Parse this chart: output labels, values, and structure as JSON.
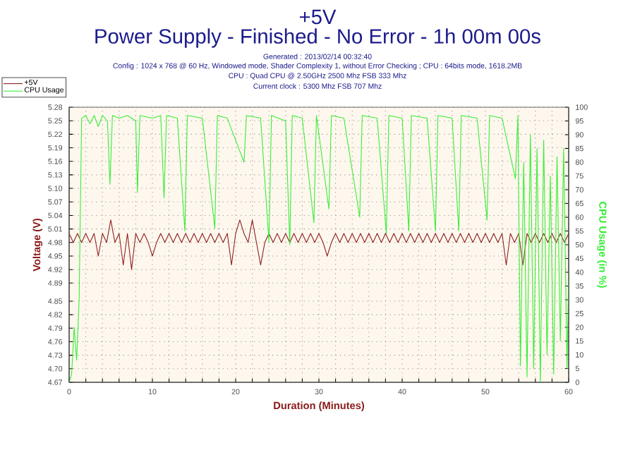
{
  "chart_data": {
    "type": "line",
    "title": "+5V",
    "subtitle": "Power Supply - Finished - No Error - 1h 00m 00s",
    "annotations": [
      "Generated : 2013/02/14 00:32:40",
      "Config : 1024 x 768 @ 60 Hz, Windowed mode, Shader Complexity 1, without Error Checking ; CPU : 64bits mode, 1618.2MB",
      "CPU : Quad CPU @ 2.50GHz 2500 Mhz FSB 333 Mhz",
      "Current clock : 5300 Mhz FSB 707 Mhz"
    ],
    "xlabel": "Duration (Minutes)",
    "ylabel": "Voltage (V)",
    "y2label": "CPU Usage (in %)",
    "xlim": [
      0,
      60
    ],
    "xticks": [
      0,
      {
        "value": 2,
        "label": null
      },
      {
        "value": 4,
        "label": null
      },
      {
        "value": 6,
        "label": null
      },
      {
        "value": 8,
        "label": null
      },
      10,
      {
        "value": 12,
        "label": null
      },
      {
        "value": 14,
        "label": null
      },
      {
        "value": 16,
        "label": null
      },
      {
        "value": 18,
        "label": null
      },
      20,
      {
        "value": 22,
        "label": null
      },
      {
        "value": 24,
        "label": null
      },
      {
        "value": 26,
        "label": null
      },
      {
        "value": 28,
        "label": null
      },
      30,
      {
        "value": 32,
        "label": null
      },
      {
        "value": 34,
        "label": null
      },
      {
        "value": 36,
        "label": null
      },
      {
        "value": 38,
        "label": null
      },
      40,
      {
        "value": 42,
        "label": null
      },
      {
        "value": 44,
        "label": null
      },
      {
        "value": 46,
        "label": null
      },
      {
        "value": 48,
        "label": null
      },
      50,
      {
        "value": 52,
        "label": null
      },
      {
        "value": 54,
        "label": null
      },
      {
        "value": 56,
        "label": null
      },
      {
        "value": 58,
        "label": null
      },
      60
    ],
    "ylim": [
      4.67,
      5.28
    ],
    "yticks": [
      4.67,
      {
        "value": 4.7,
        "label": "4.70"
      },
      4.73,
      4.76,
      4.79,
      4.82,
      4.85,
      4.89,
      4.92,
      4.95,
      4.98,
      5.01,
      5.04,
      5.07,
      {
        "value": 5.1,
        "label": "5.10"
      },
      5.13,
      5.16,
      5.19,
      5.22,
      5.25,
      5.28
    ],
    "y2lim": [
      0,
      100
    ],
    "y2ticks": [
      0,
      5,
      10,
      15,
      20,
      25,
      30,
      35,
      40,
      45,
      50,
      55,
      60,
      65,
      70,
      75,
      80,
      85,
      90,
      95,
      100
    ],
    "grid": true,
    "legend": "top left",
    "marker": "none",
    "line_style": "solid",
    "series": [
      {
        "name": "+5V",
        "color": "#8b1a1a",
        "x": [
          0,
          0.5,
          1,
          1.5,
          2,
          2.5,
          3,
          3.5,
          4,
          4.5,
          5,
          5.5,
          6,
          6.5,
          7,
          7.5,
          8,
          8.5,
          9,
          9.5,
          10,
          10.5,
          11,
          11.5,
          12,
          12.5,
          13,
          13.5,
          14,
          14.5,
          15,
          15.5,
          16,
          16.5,
          17,
          17.5,
          18,
          18.5,
          19,
          19.5,
          20,
          20.5,
          21,
          21.5,
          22,
          22.5,
          23,
          23.5,
          24,
          24.5,
          25,
          25.5,
          26,
          26.5,
          27,
          27.5,
          28,
          28.5,
          29,
          29.5,
          30,
          30.5,
          31,
          31.5,
          32,
          32.5,
          33,
          33.5,
          34,
          34.5,
          35,
          35.5,
          36,
          36.5,
          37,
          37.5,
          38,
          38.5,
          39,
          39.5,
          40,
          40.5,
          41,
          41.5,
          42,
          42.5,
          43,
          43.5,
          44,
          44.5,
          45,
          45.5,
          46,
          46.5,
          47,
          47.5,
          48,
          48.5,
          49,
          49.5,
          50,
          50.5,
          51,
          51.5,
          52,
          52.5,
          53,
          53.5,
          54,
          54.5,
          55,
          55.5,
          56,
          56.5,
          57,
          57.5,
          58,
          58.5,
          59,
          59.5,
          60
        ],
        "values": [
          5.0,
          4.98,
          5.0,
          4.98,
          5.0,
          4.98,
          5.0,
          4.95,
          5.0,
          4.98,
          5.03,
          4.98,
          5.0,
          4.93,
          5.0,
          4.92,
          5.0,
          4.98,
          5.0,
          4.98,
          4.95,
          4.98,
          5.0,
          4.98,
          5.0,
          4.98,
          5.0,
          4.98,
          5.0,
          4.98,
          5.0,
          4.98,
          5.0,
          4.98,
          5.0,
          4.98,
          5.0,
          4.98,
          5.0,
          4.93,
          5.0,
          5.03,
          5.0,
          4.98,
          5.03,
          4.98,
          4.93,
          4.98,
          5.0,
          4.98,
          5.0,
          4.98,
          5.0,
          4.98,
          5.0,
          4.98,
          5.0,
          4.98,
          5.0,
          4.98,
          5.0,
          4.98,
          4.95,
          4.98,
          5.0,
          4.98,
          5.0,
          4.98,
          5.0,
          4.98,
          5.0,
          4.98,
          5.0,
          4.98,
          5.0,
          4.98,
          5.0,
          4.98,
          5.0,
          4.98,
          5.0,
          4.98,
          5.0,
          4.98,
          5.0,
          4.98,
          5.0,
          4.98,
          5.0,
          4.98,
          5.0,
          4.98,
          5.0,
          4.98,
          5.0,
          4.98,
          5.0,
          4.98,
          5.0,
          4.98,
          5.0,
          4.98,
          5.0,
          4.98,
          5.0,
          4.93,
          5.0,
          4.98,
          5.0,
          4.93,
          5.0,
          4.98,
          5.0,
          4.98,
          5.0,
          4.98,
          5.0,
          4.98,
          5.0,
          4.98,
          5.0
        ]
      },
      {
        "name": "CPU Usage",
        "color": "#33ee33",
        "axis": "y2",
        "x": [
          0,
          0.3,
          0.6,
          0.9,
          1.2,
          1.5,
          2,
          2.5,
          3,
          3.5,
          4,
          4.6,
          4.9,
          5.2,
          6,
          7,
          8,
          8.2,
          8.5,
          10,
          11,
          11.4,
          11.7,
          13,
          13.9,
          14.2,
          16,
          17.5,
          17.8,
          19,
          21,
          21.3,
          23,
          24,
          24.3,
          26,
          26.5,
          26.8,
          28,
          29.4,
          29.7,
          31.2,
          31.5,
          33,
          34.9,
          35.2,
          37,
          38.1,
          38.4,
          40,
          40.8,
          41.1,
          43,
          44,
          44.3,
          46,
          46.8,
          47.1,
          49,
          50.2,
          50.5,
          52,
          53.6,
          53.9,
          54.2,
          54.6,
          55,
          55.4,
          55.8,
          56.2,
          56.6,
          57,
          57.4,
          57.8,
          58.2,
          58.6,
          59,
          59.4,
          59.8,
          60
        ],
        "values": [
          0,
          3,
          20,
          8,
          30,
          96,
          97,
          94,
          97,
          93,
          97,
          95,
          72,
          97,
          96,
          97,
          95,
          69,
          97,
          96,
          97,
          67,
          97,
          96,
          55,
          97,
          96,
          56,
          97,
          96,
          80,
          97,
          96,
          51,
          97,
          95,
          50,
          97,
          96,
          58,
          97,
          63,
          97,
          96,
          60,
          97,
          96,
          54,
          97,
          96,
          55,
          97,
          96,
          55,
          97,
          96,
          55,
          97,
          96,
          59,
          97,
          96,
          74,
          97,
          6,
          80,
          2,
          90,
          5,
          85,
          0,
          88,
          10,
          75,
          3,
          82,
          15,
          85,
          5,
          40
        ]
      }
    ]
  }
}
